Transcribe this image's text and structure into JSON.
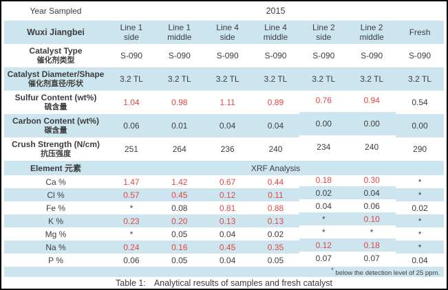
{
  "colors": {
    "band": "#cde5ee",
    "red": "#e04840",
    "ink": "#3d3d3d"
  },
  "top": {
    "year_label": "Year Sampled",
    "year_value": "2015"
  },
  "head": {
    "site": "Wuxi Jiangbei",
    "columns": [
      {
        "l1": "Line 1",
        "l2": "side"
      },
      {
        "l1": "Line 1",
        "l2": "middle"
      },
      {
        "l1": "Line 4",
        "l2": "side"
      },
      {
        "l1": "Line 4",
        "l2": "middle"
      },
      {
        "l1": "Line 2",
        "l2": "side"
      },
      {
        "l1": "Line 2",
        "l2": "middle"
      },
      {
        "l1": "Fresh",
        "l2": ""
      }
    ]
  },
  "property_rows": [
    {
      "en": "Catalyst Type",
      "zh": "催化剂类型",
      "values": [
        "S-090",
        "S-090",
        "S-090",
        "S-090",
        "S-090",
        "S-090",
        "S-090"
      ],
      "red": []
    },
    {
      "en": "Catalyst Diameter/Shape",
      "zh": "催化剂直径/形状",
      "values": [
        "3.2 TL",
        "3.2 TL",
        "3.2 TL",
        "3.2 TL",
        "3.2 TL",
        "3.2 TL",
        "3.2 TL"
      ],
      "red": []
    },
    {
      "en": "Sulfur Content (wt%)",
      "zh": "硫含量",
      "values": [
        "1.04",
        "0.98",
        "1.11",
        "0.89",
        "0.76",
        "0.94",
        "0.54"
      ],
      "red": [
        0,
        1,
        2,
        3,
        4,
        5
      ]
    },
    {
      "en": "Carbon Content (wt%)",
      "zh": "碳含量",
      "values": [
        "0.06",
        "0.01",
        "0.04",
        "0.04",
        "0.00",
        "0.00",
        "0.00"
      ],
      "red": []
    },
    {
      "en": "Crush Strength (N/cm)",
      "zh": "抗压强度",
      "values": [
        "251",
        "264",
        "236",
        "240",
        "234",
        "240",
        "290"
      ],
      "red": []
    }
  ],
  "xrf_section": {
    "en": "Element",
    "zh": "元素",
    "banner": "XRF Analysis"
  },
  "element_rows": [
    {
      "label": "Ca %",
      "values": [
        "1.47",
        "1.42",
        "0.67",
        "0.44",
        "0.18",
        "0.30",
        "*"
      ],
      "red": [
        0,
        1,
        2,
        3,
        4,
        5
      ]
    },
    {
      "label": "Cl %",
      "values": [
        "0.57",
        "0.45",
        "0.12",
        "0.11",
        "0.02",
        "0.04",
        "*"
      ],
      "red": [
        0,
        1,
        2,
        3
      ]
    },
    {
      "label": "Fe %",
      "values": [
        "*",
        "0.08",
        "0.81",
        "0.88",
        "0.04",
        "0.06",
        "0.02"
      ],
      "red": [
        2,
        3
      ]
    },
    {
      "label": "K %",
      "values": [
        "0.23",
        "0.20",
        "0.13",
        "0.13",
        "*",
        "0.10",
        "*"
      ],
      "red": [
        0,
        1,
        2,
        3,
        5
      ]
    },
    {
      "label": "Mg %",
      "values": [
        "*",
        "0.05",
        "0.04",
        "0.02",
        "*",
        "*",
        "*"
      ],
      "red": []
    },
    {
      "label": "Na %",
      "values": [
        "0.24",
        "0.16",
        "0.45",
        "0.35",
        "0.12",
        "0.18",
        "*"
      ],
      "red": [
        0,
        1,
        2,
        3,
        4,
        5
      ]
    },
    {
      "label": "P %",
      "values": [
        "0.06",
        "0.05",
        "0.04",
        "0.05",
        "0.07",
        "0.07",
        "0.04"
      ],
      "red": []
    }
  ],
  "footnote": {
    "marker": "*",
    "text": "below the detection level of 25 ppm."
  },
  "caption": {
    "prefix": "Table 1:",
    "text": "Analytical results of samples and fresh catalyst"
  }
}
